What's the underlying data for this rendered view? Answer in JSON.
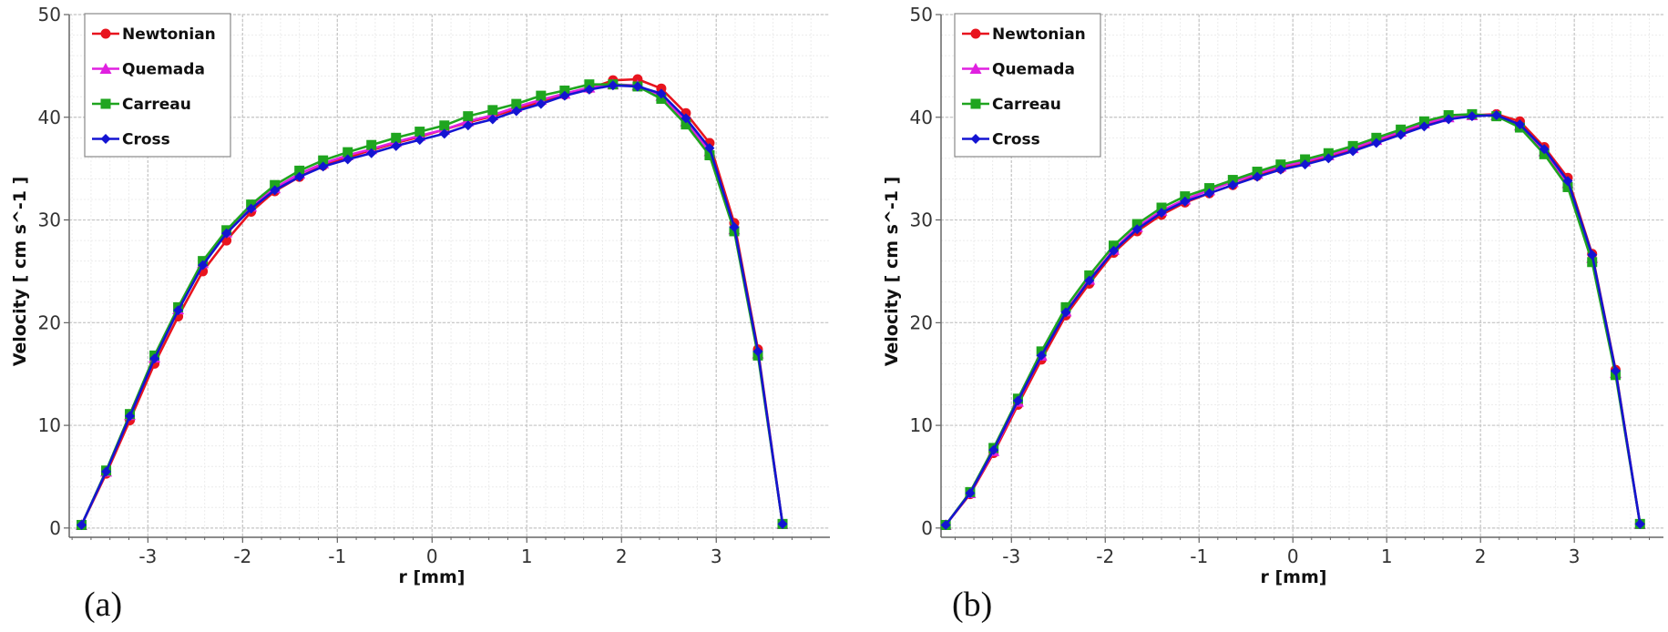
{
  "chart_data": [
    {
      "type": "line",
      "panel_label": "(a)",
      "xlabel": "r [mm]",
      "ylabel": "Velocity [ cm s^-1 ]",
      "xlim": [
        -3.83,
        4.2
      ],
      "ylim": [
        -0.9,
        50
      ],
      "xticks": [
        -3,
        -2,
        -1,
        0,
        1,
        2,
        3
      ],
      "xtick_labels": [
        "-3",
        "-2",
        "-1",
        "0",
        "1",
        "2",
        "3"
      ],
      "yticks": [
        0,
        10,
        20,
        30,
        40,
        50
      ],
      "ytick_labels": [
        "0",
        "10",
        "20",
        "30",
        "40",
        "50"
      ],
      "grid": true,
      "legend_position": "top-left",
      "x": [
        -3.7,
        -3.44,
        -3.19,
        -2.93,
        -2.68,
        -2.42,
        -2.17,
        -1.91,
        -1.66,
        -1.4,
        -1.15,
        -0.89,
        -0.64,
        -0.38,
        -0.13,
        0.13,
        0.38,
        0.64,
        0.89,
        1.15,
        1.4,
        1.66,
        1.91,
        2.17,
        2.42,
        2.68,
        2.93,
        3.19,
        3.44,
        3.7
      ],
      "series": [
        {
          "name": "Newtonian",
          "color": "#e8141e",
          "marker": "circle",
          "values": [
            0.3,
            5.3,
            10.5,
            16.0,
            20.6,
            25.0,
            28.0,
            30.8,
            32.8,
            34.2,
            35.3,
            36.1,
            36.8,
            37.5,
            38.1,
            38.8,
            39.5,
            40.1,
            40.8,
            41.5,
            42.2,
            42.8,
            43.6,
            43.7,
            42.8,
            40.4,
            37.5,
            29.7,
            17.4,
            0.4
          ]
        },
        {
          "name": "Quemada",
          "color": "#e020e0",
          "marker": "triangle",
          "values": [
            0.3,
            5.5,
            11.0,
            16.6,
            21.3,
            25.8,
            28.8,
            31.3,
            33.1,
            34.5,
            35.5,
            36.3,
            36.9,
            37.6,
            38.2,
            38.8,
            39.6,
            40.2,
            41.0,
            41.7,
            42.3,
            42.9,
            43.2,
            43.1,
            42.1,
            39.6,
            36.7,
            29.1,
            17.0,
            0.4
          ]
        },
        {
          "name": "Carreau",
          "color": "#1fa51f",
          "marker": "square",
          "values": [
            0.3,
            5.6,
            11.1,
            16.8,
            21.5,
            26.0,
            29.0,
            31.5,
            33.4,
            34.8,
            35.8,
            36.6,
            37.3,
            38.0,
            38.6,
            39.2,
            40.1,
            40.7,
            41.3,
            42.1,
            42.6,
            43.2,
            43.2,
            43.0,
            41.8,
            39.3,
            36.3,
            28.9,
            16.8,
            0.4
          ]
        },
        {
          "name": "Cross",
          "color": "#1414d2",
          "marker": "diamond",
          "values": [
            0.3,
            5.5,
            10.9,
            16.5,
            21.2,
            25.6,
            28.7,
            31.1,
            32.9,
            34.2,
            35.2,
            35.9,
            36.5,
            37.2,
            37.8,
            38.4,
            39.2,
            39.8,
            40.6,
            41.3,
            42.1,
            42.7,
            43.1,
            43.0,
            42.3,
            39.9,
            37.0,
            29.3,
            17.2,
            0.4
          ]
        }
      ]
    },
    {
      "type": "line",
      "panel_label": "(b)",
      "xlabel": "r [mm]",
      "ylabel": "Velocity [ cm s^-1 ]",
      "xlim": [
        -3.75,
        3.95
      ],
      "ylim": [
        -0.9,
        50
      ],
      "xticks": [
        -3,
        -2,
        -1,
        0,
        1,
        2,
        3
      ],
      "xtick_labels": [
        "-3",
        "-2",
        "-1",
        "0",
        "1",
        "2",
        "3"
      ],
      "yticks": [
        0,
        10,
        20,
        30,
        40,
        50
      ],
      "ytick_labels": [
        "0",
        "10",
        "20",
        "30",
        "40",
        "50"
      ],
      "grid": true,
      "legend_position": "top-left",
      "x": [
        -3.7,
        -3.44,
        -3.19,
        -2.93,
        -2.68,
        -2.42,
        -2.17,
        -1.91,
        -1.66,
        -1.4,
        -1.15,
        -0.89,
        -0.64,
        -0.38,
        -0.13,
        0.13,
        0.38,
        0.64,
        0.89,
        1.15,
        1.4,
        1.66,
        1.91,
        2.17,
        2.42,
        2.68,
        2.93,
        3.19,
        3.44,
        3.7
      ],
      "series": [
        {
          "name": "Newtonian",
          "color": "#e8141e",
          "marker": "circle",
          "values": [
            0.3,
            3.3,
            7.3,
            12.0,
            16.4,
            20.7,
            23.8,
            26.8,
            28.9,
            30.5,
            31.7,
            32.6,
            33.4,
            34.3,
            35.0,
            35.6,
            36.2,
            36.9,
            37.7,
            38.5,
            39.3,
            40.0,
            40.2,
            40.3,
            39.6,
            37.1,
            34.1,
            26.7,
            15.4,
            0.4
          ]
        },
        {
          "name": "Quemada",
          "color": "#e020e0",
          "marker": "triangle",
          "values": [
            0.3,
            3.4,
            7.5,
            12.3,
            16.8,
            21.1,
            24.2,
            27.1,
            29.3,
            30.9,
            32.0,
            32.9,
            33.7,
            34.5,
            35.2,
            35.7,
            36.3,
            37.0,
            37.8,
            38.6,
            39.4,
            40.0,
            40.2,
            40.2,
            39.2,
            36.7,
            33.6,
            26.3,
            15.1,
            0.4
          ]
        },
        {
          "name": "Carreau",
          "color": "#1fa51f",
          "marker": "square",
          "values": [
            0.3,
            3.5,
            7.8,
            12.6,
            17.2,
            21.5,
            24.6,
            27.5,
            29.6,
            31.2,
            32.3,
            33.1,
            33.9,
            34.7,
            35.4,
            35.9,
            36.5,
            37.2,
            38.0,
            38.8,
            39.6,
            40.2,
            40.3,
            40.1,
            39.0,
            36.4,
            33.2,
            25.9,
            14.9,
            0.4
          ]
        },
        {
          "name": "Cross",
          "color": "#1414d2",
          "marker": "diamond",
          "values": [
            0.3,
            3.4,
            7.6,
            12.4,
            16.8,
            21.0,
            24.1,
            27.0,
            29.1,
            30.7,
            31.8,
            32.6,
            33.4,
            34.2,
            34.9,
            35.4,
            36.0,
            36.7,
            37.5,
            38.3,
            39.1,
            39.8,
            40.1,
            40.2,
            39.3,
            36.9,
            33.8,
            26.6,
            15.3,
            0.4
          ]
        }
      ]
    }
  ]
}
